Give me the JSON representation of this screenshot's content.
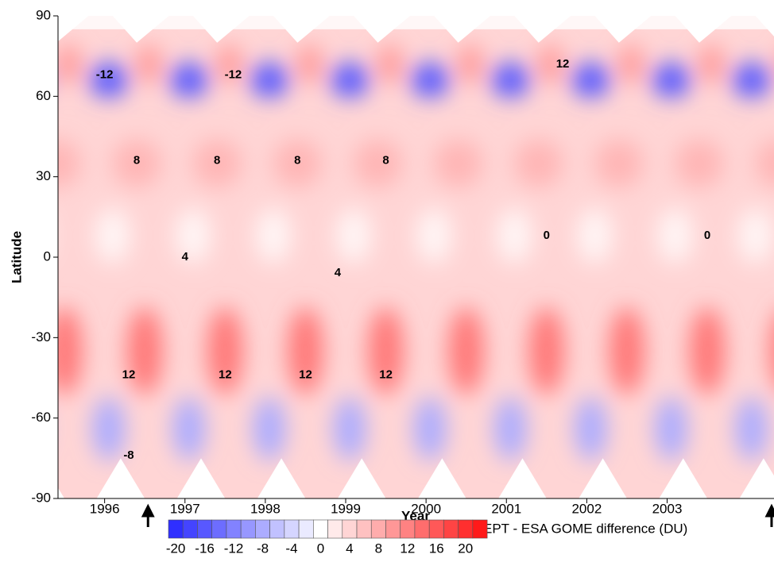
{
  "chart_data": {
    "type": "contour",
    "xlabel": "Year",
    "ylabel": "Latitude",
    "xlim": [
      1995.42,
      2004.33
    ],
    "xticks": [
      1996,
      1997,
      1998,
      1999,
      2000,
      2001,
      2002,
      2003
    ],
    "ylim": [
      -90,
      90
    ],
    "yticks": [
      -90,
      -60,
      -30,
      0,
      30,
      60,
      90
    ],
    "colorbar": {
      "label": "EPT - ESA GOME difference (DU)",
      "lim": [
        -21,
        22
      ],
      "ticks": [
        -20,
        -16,
        -12,
        -8,
        -4,
        0,
        4,
        8,
        12,
        16,
        20
      ],
      "low_color": "#1a1aff",
      "mid_color": "#ffffff",
      "high_color": "#ff1a1a"
    },
    "arrows_x": [
      1996.54,
      2004.3
    ],
    "annotations": [
      {
        "text": "12",
        "x": 1996.3,
        "y": -44
      },
      {
        "text": "12",
        "x": 1997.5,
        "y": -44
      },
      {
        "text": "12",
        "x": 1998.5,
        "y": -44
      },
      {
        "text": "12",
        "x": 1999.5,
        "y": -44
      },
      {
        "text": "8",
        "x": 1996.4,
        "y": 36
      },
      {
        "text": "8",
        "x": 1997.4,
        "y": 36
      },
      {
        "text": "8",
        "x": 1998.4,
        "y": 36
      },
      {
        "text": "8",
        "x": 1999.5,
        "y": 36
      },
      {
        "text": "4",
        "x": 1997.0,
        "y": 0
      },
      {
        "text": "4",
        "x": 1998.9,
        "y": -6
      },
      {
        "text": "-12",
        "x": 1996.0,
        "y": 68
      },
      {
        "text": "-12",
        "x": 1997.6,
        "y": 68
      },
      {
        "text": "0",
        "x": 2001.5,
        "y": 8
      },
      {
        "text": "0",
        "x": 2003.5,
        "y": 8
      },
      {
        "text": "12",
        "x": 2001.7,
        "y": 72
      },
      {
        "text": "-8",
        "x": 1996.3,
        "y": -74
      }
    ]
  }
}
